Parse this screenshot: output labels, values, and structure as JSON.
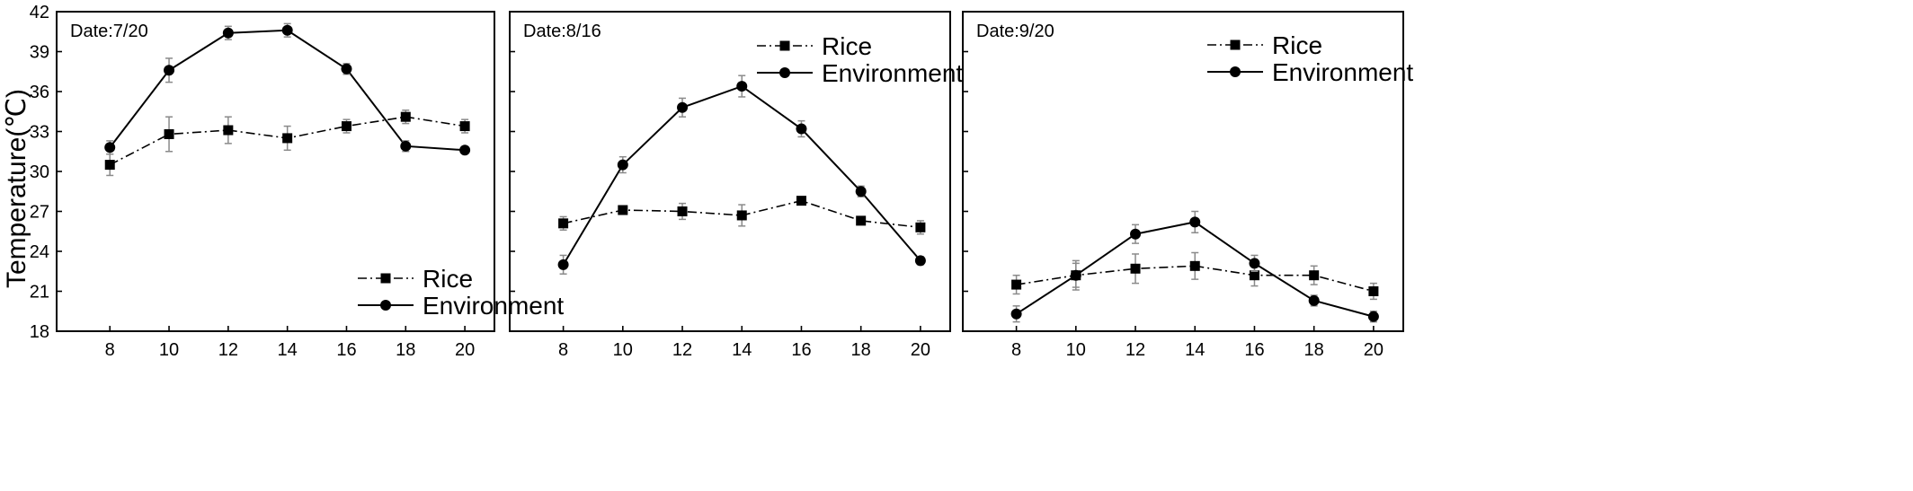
{
  "ylabel": "Temperature(℃)",
  "chart_data": [
    {
      "type": "line",
      "date_label": "Date:7/20",
      "x": [
        8,
        10,
        12,
        14,
        16,
        18,
        20
      ],
      "xlim": [
        6.2,
        21
      ],
      "ylim": [
        18,
        42
      ],
      "yticks": [
        18,
        21,
        24,
        27,
        30,
        33,
        36,
        39,
        42
      ],
      "legend": {
        "placement": "bottom-right"
      },
      "series": [
        {
          "name": "Rice",
          "values": [
            30.5,
            32.8,
            33.1,
            32.5,
            33.4,
            34.1,
            33.4
          ],
          "errors": [
            0.8,
            1.3,
            1.0,
            0.9,
            0.5,
            0.5,
            0.5
          ],
          "marker": "square",
          "line": "dash-dot"
        },
        {
          "name": "Environment",
          "values": [
            31.8,
            37.6,
            40.4,
            40.6,
            37.7,
            31.9,
            31.6
          ],
          "errors": [
            0.5,
            0.9,
            0.5,
            0.5,
            0.4,
            0.4,
            0.0
          ],
          "marker": "circle",
          "line": "solid"
        }
      ]
    },
    {
      "type": "line",
      "date_label": "Date:8/16",
      "x": [
        8,
        10,
        12,
        14,
        16,
        18,
        20
      ],
      "xlim": [
        6.2,
        21
      ],
      "ylim": [
        18,
        42
      ],
      "yticks": [
        18,
        21,
        24,
        27,
        30,
        33,
        36,
        39,
        42
      ],
      "legend": {
        "placement": "top-right"
      },
      "series": [
        {
          "name": "Rice",
          "values": [
            26.1,
            27.1,
            27.0,
            26.7,
            27.8,
            26.3,
            25.8
          ],
          "errors": [
            0.5,
            0.3,
            0.6,
            0.8,
            0.3,
            0.2,
            0.5
          ],
          "marker": "square",
          "line": "dash-dot"
        },
        {
          "name": "Environment",
          "values": [
            23.0,
            30.5,
            34.8,
            36.4,
            33.2,
            28.5,
            23.3
          ],
          "errors": [
            0.7,
            0.6,
            0.7,
            0.8,
            0.6,
            0.4,
            0.3
          ],
          "marker": "circle",
          "line": "solid"
        }
      ]
    },
    {
      "type": "line",
      "date_label": "Date:9/20",
      "x": [
        8,
        10,
        12,
        14,
        16,
        18,
        20
      ],
      "xlim": [
        6.2,
        21
      ],
      "ylim": [
        18,
        42
      ],
      "yticks": [
        18,
        21,
        24,
        27,
        30,
        33,
        36,
        39,
        42
      ],
      "legend": {
        "placement": "top-right"
      },
      "series": [
        {
          "name": "Rice",
          "values": [
            21.5,
            22.2,
            22.7,
            22.9,
            22.2,
            22.2,
            21.0
          ],
          "errors": [
            0.7,
            1.1,
            1.1,
            1.0,
            0.8,
            0.7,
            0.6
          ],
          "marker": "square",
          "line": "dash-dot"
        },
        {
          "name": "Environment",
          "values": [
            19.3,
            22.2,
            25.3,
            26.2,
            23.1,
            20.3,
            19.1
          ],
          "errors": [
            0.6,
            0.9,
            0.7,
            0.8,
            0.6,
            0.4,
            0.4
          ],
          "marker": "circle",
          "line": "solid"
        }
      ]
    }
  ]
}
